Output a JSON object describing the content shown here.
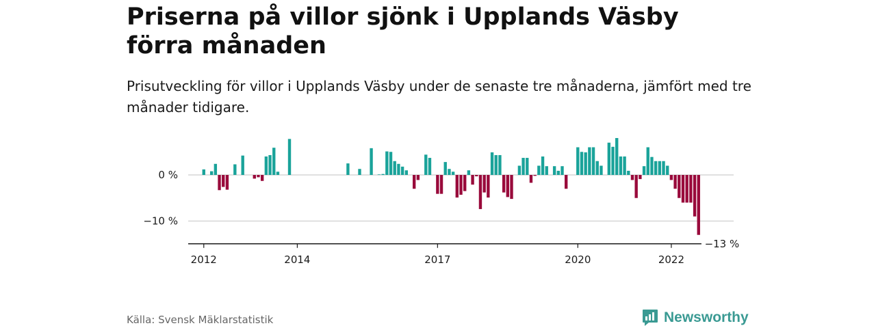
{
  "title": "Priserna på villor sjönk i Upplands Väsby förra månaden",
  "subtitle": "Prisutveckling för villor i Upplands Väsby under de senaste tre månaderna, jämfört med tre månader tidigare.",
  "source": "Källa: Svensk Mäklarstatistik",
  "brand": "Newsworthy",
  "colors": {
    "positive": "#1aa39a",
    "negative": "#990a3b",
    "brand": "#3a9a93"
  },
  "chart_data": {
    "type": "bar",
    "title": "Priserna på villor sjönk i Upplands Väsby förra månaden",
    "x_start": "2011-09",
    "x_end": "2023-05",
    "ylim": [
      -15,
      8
    ],
    "y_ticks": [
      {
        "value": 0,
        "label": "0 %"
      },
      {
        "value": -10,
        "label": "−10 %"
      }
    ],
    "x_ticks": [
      {
        "date": "2012-01",
        "label": "2012"
      },
      {
        "date": "2014-01",
        "label": "2014"
      },
      {
        "date": "2017-01",
        "label": "2017"
      },
      {
        "date": "2020-01",
        "label": "2020"
      },
      {
        "date": "2022-01",
        "label": "2022"
      }
    ],
    "annotation": {
      "date": "2023-02",
      "value": -13,
      "label": "−13 %"
    },
    "series": [
      {
        "values": [
          [
            "2012-01",
            1.2
          ],
          [
            "2012-02",
            0
          ],
          [
            "2012-03",
            0.8
          ],
          [
            "2012-04",
            2.4
          ],
          [
            "2012-05",
            -3.3
          ],
          [
            "2012-06",
            -2.6
          ],
          [
            "2012-07",
            -3.2
          ],
          [
            "2012-08",
            0
          ],
          [
            "2012-09",
            2.3
          ],
          [
            "2012-10",
            0
          ],
          [
            "2012-11",
            4.2
          ],
          [
            "2012-12",
            0
          ],
          [
            "2013-01",
            0
          ],
          [
            "2013-02",
            -0.8
          ],
          [
            "2013-03",
            -0.5
          ],
          [
            "2013-04",
            -1.3
          ],
          [
            "2013-05",
            4.0
          ],
          [
            "2013-06",
            4.3
          ],
          [
            "2013-07",
            5.9
          ],
          [
            "2013-08",
            0.7
          ],
          [
            "2013-09",
            0
          ],
          [
            "2013-10",
            0
          ],
          [
            "2013-11",
            7.8
          ],
          [
            "2015-02",
            2.5
          ],
          [
            "2015-03",
            0
          ],
          [
            "2015-04",
            0
          ],
          [
            "2015-05",
            1.3
          ],
          [
            "2015-06",
            0
          ],
          [
            "2015-07",
            0
          ],
          [
            "2015-08",
            5.8
          ],
          [
            "2015-09",
            0
          ],
          [
            "2015-10",
            0.1
          ],
          [
            "2015-11",
            0.2
          ],
          [
            "2015-12",
            5.1
          ],
          [
            "2016-01",
            5.0
          ],
          [
            "2016-02",
            3.0
          ],
          [
            "2016-03",
            2.4
          ],
          [
            "2016-04",
            1.8
          ],
          [
            "2016-05",
            1.0
          ],
          [
            "2016-06",
            0
          ],
          [
            "2016-07",
            -3.0
          ],
          [
            "2016-08",
            -1.1
          ],
          [
            "2016-09",
            0
          ],
          [
            "2016-10",
            4.4
          ],
          [
            "2016-11",
            3.7
          ],
          [
            "2016-12",
            0
          ],
          [
            "2017-01",
            -4.1
          ],
          [
            "2017-02",
            -4.1
          ],
          [
            "2017-03",
            2.8
          ],
          [
            "2017-04",
            1.3
          ],
          [
            "2017-05",
            0.7
          ],
          [
            "2017-06",
            -4.9
          ],
          [
            "2017-07",
            -4.3
          ],
          [
            "2017-08",
            -3.5
          ],
          [
            "2017-09",
            1.0
          ],
          [
            "2017-10",
            -2.1
          ],
          [
            "2017-11",
            -0.3
          ],
          [
            "2017-12",
            -7.4
          ],
          [
            "2018-01",
            -3.8
          ],
          [
            "2018-02",
            -4.9
          ],
          [
            "2018-03",
            4.9
          ],
          [
            "2018-04",
            4.3
          ],
          [
            "2018-05",
            4.3
          ],
          [
            "2018-06",
            -3.8
          ],
          [
            "2018-07",
            -4.8
          ],
          [
            "2018-08",
            -5.2
          ],
          [
            "2018-09",
            0
          ],
          [
            "2018-10",
            2.0
          ],
          [
            "2018-11",
            3.7
          ],
          [
            "2018-12",
            3.7
          ],
          [
            "2019-01",
            -1.7
          ],
          [
            "2019-02",
            -0.2
          ],
          [
            "2019-03",
            2.0
          ],
          [
            "2019-04",
            4.0
          ],
          [
            "2019-05",
            1.9
          ],
          [
            "2019-06",
            0
          ],
          [
            "2019-07",
            1.9
          ],
          [
            "2019-08",
            0.9
          ],
          [
            "2019-09",
            1.9
          ],
          [
            "2019-10",
            -3.0
          ],
          [
            "2019-11",
            0
          ],
          [
            "2019-12",
            0
          ],
          [
            "2020-01",
            6.0
          ],
          [
            "2020-02",
            5.0
          ],
          [
            "2020-03",
            4.9
          ],
          [
            "2020-04",
            6.0
          ],
          [
            "2020-05",
            6.0
          ],
          [
            "2020-06",
            3.0
          ],
          [
            "2020-07",
            2.0
          ],
          [
            "2020-08",
            0
          ],
          [
            "2020-09",
            7.0
          ],
          [
            "2020-10",
            6.1
          ],
          [
            "2020-11",
            8.0
          ],
          [
            "2020-12",
            4.0
          ],
          [
            "2021-01",
            4.0
          ],
          [
            "2021-02",
            0.9
          ],
          [
            "2021-03",
            -1.1
          ],
          [
            "2021-04",
            -5.0
          ],
          [
            "2021-05",
            -0.9
          ],
          [
            "2021-06",
            1.9
          ],
          [
            "2021-07",
            6.0
          ],
          [
            "2021-08",
            3.9
          ],
          [
            "2021-09",
            3.0
          ],
          [
            "2021-10",
            3.0
          ],
          [
            "2021-11",
            3.0
          ],
          [
            "2021-12",
            2.0
          ],
          [
            "2022-01",
            -1.1
          ],
          [
            "2022-02",
            -3.0
          ],
          [
            "2022-03",
            -5.0
          ],
          [
            "2022-04",
            -6.0
          ],
          [
            "2022-05",
            -6.0
          ],
          [
            "2022-06",
            -6.0
          ],
          [
            "2022-07",
            -9.0
          ],
          [
            "2022-08",
            -13.0
          ]
        ]
      }
    ],
    "legend": false,
    "grid": true
  }
}
